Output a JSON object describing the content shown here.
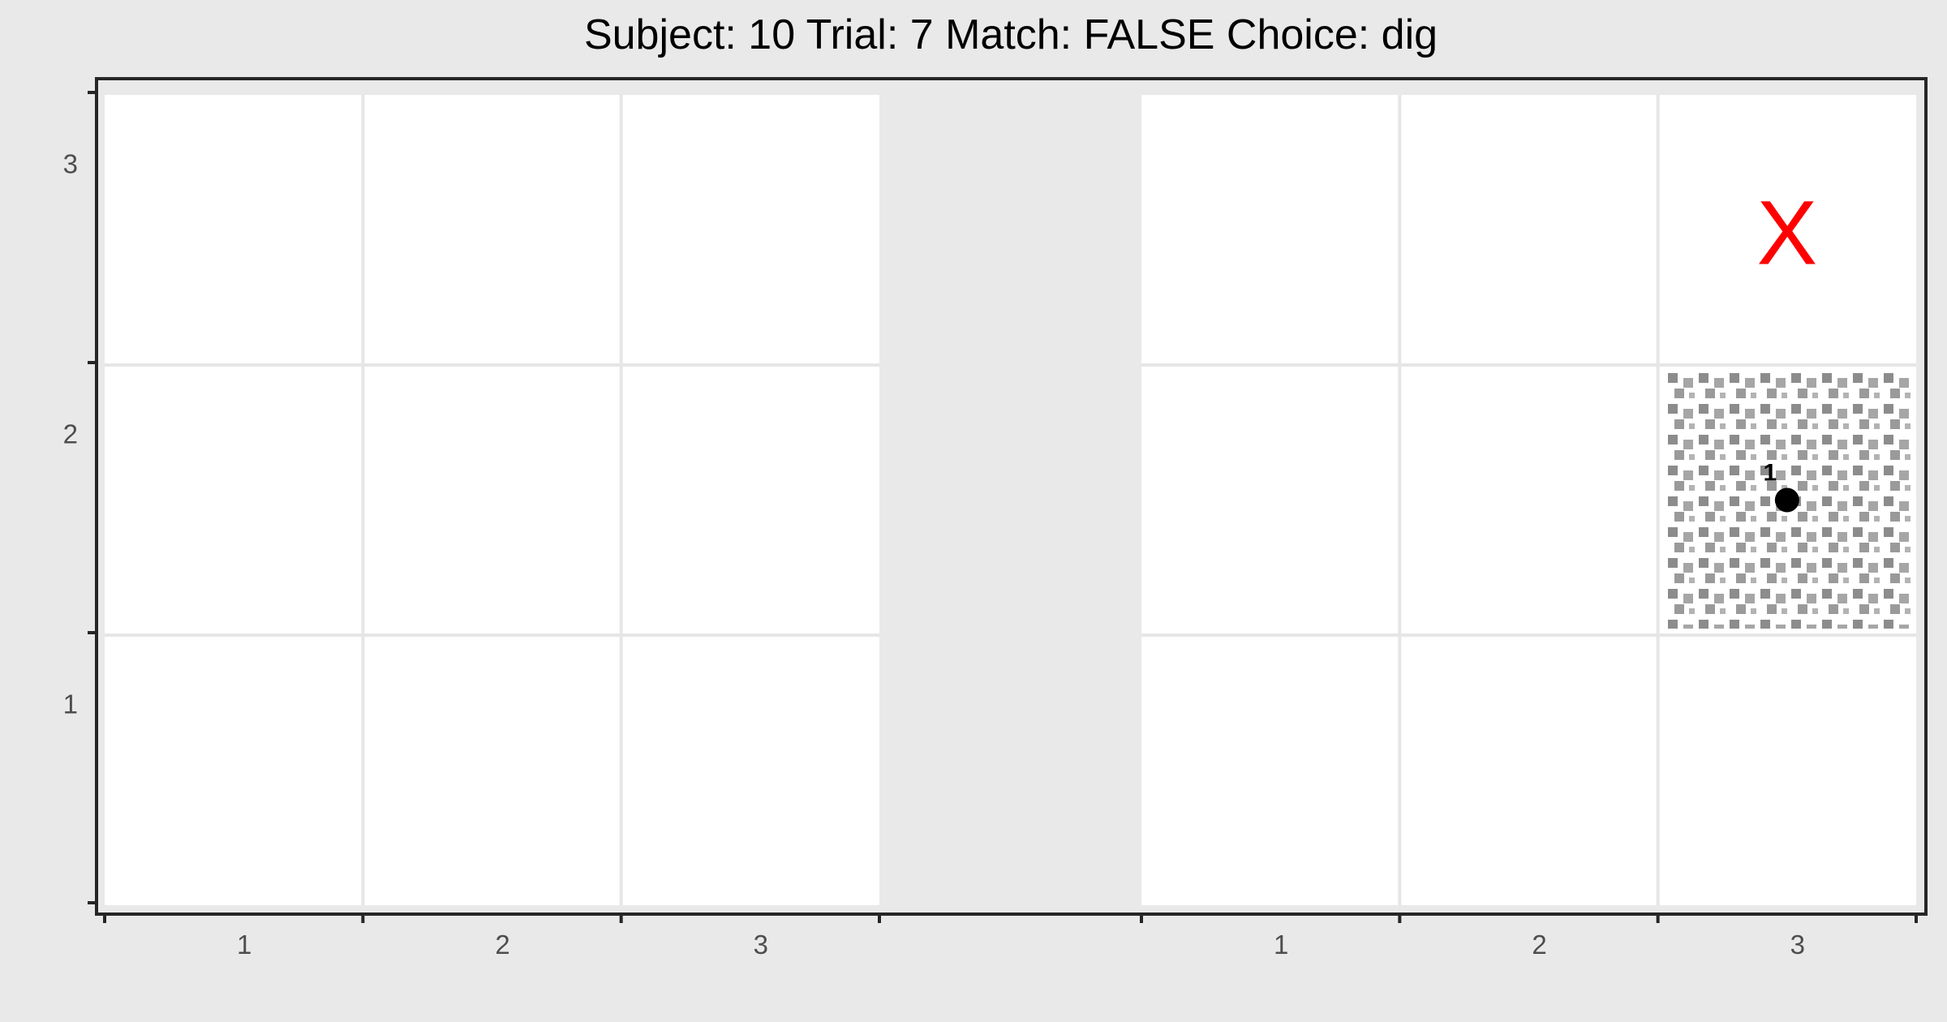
{
  "title": "Subject:  10  Trial:  7  Match: FALSE  Choice: dig",
  "chart_data": {
    "type": "scatter",
    "title": "Subject:  10  Trial:  7  Match: FALSE  Choice: dig",
    "panels": [
      {
        "name": "left",
        "xlim": [
          0,
          3
        ],
        "ylim": [
          0,
          3
        ],
        "x_ticks": [
          1,
          2,
          3
        ],
        "y_ticks": [
          1,
          2,
          3
        ],
        "grid": true,
        "marks": []
      },
      {
        "name": "right",
        "xlim": [
          0,
          3
        ],
        "ylim": [
          0,
          3
        ],
        "x_ticks": [
          1,
          2,
          3
        ],
        "y_ticks": [],
        "grid": true,
        "marks": [
          {
            "type": "patterned-cell",
            "col": 3,
            "row": 2,
            "pattern": "gray-squares"
          },
          {
            "type": "point",
            "x": 2.5,
            "y": 1.5,
            "label": "1",
            "color": "#000000"
          },
          {
            "type": "text-mark",
            "x": 2.5,
            "y": 2.5,
            "text": "X",
            "color": "#ff0000"
          }
        ]
      }
    ],
    "colors": {
      "background": "#e9e9e9",
      "panel": "#ffffff",
      "grid": "#e6e6e6",
      "pattern": "#8c8c8c",
      "x_mark": "#ff0000"
    }
  }
}
